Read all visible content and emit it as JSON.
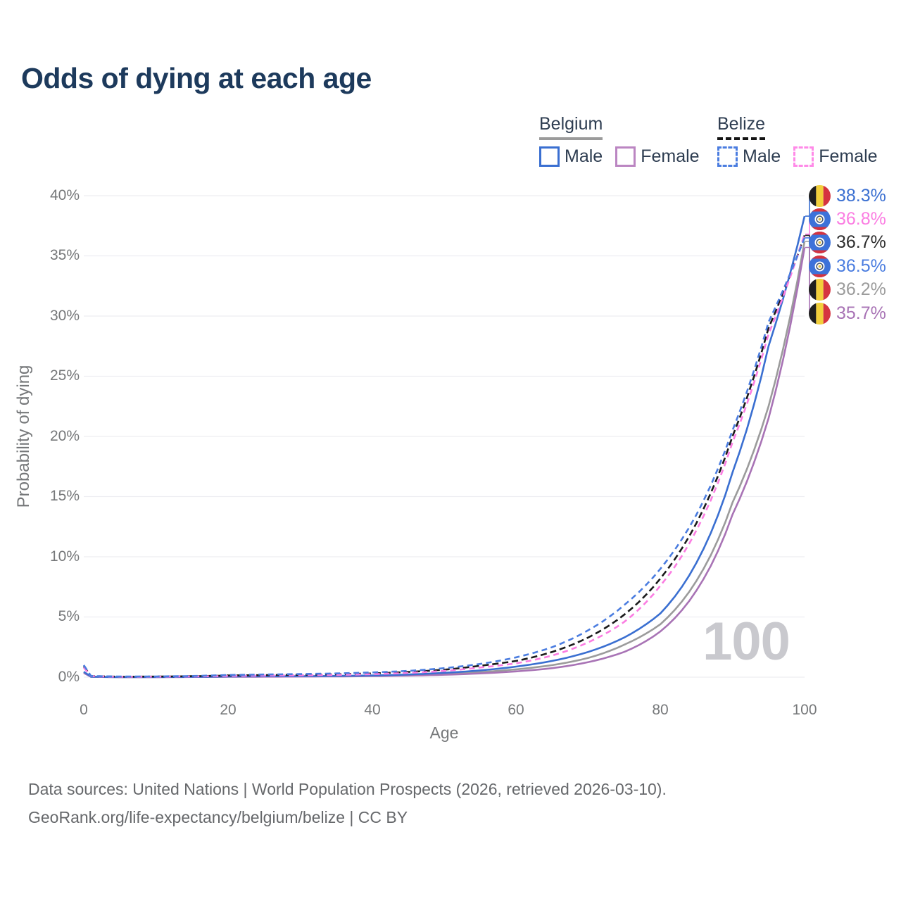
{
  "title": "Odds of dying at each age",
  "legend": {
    "groups": [
      {
        "country": "Belgium",
        "underline_style": "solid",
        "underline_color": "#9b9b9b",
        "items": [
          {
            "label": "Male",
            "color": "#3a6fd1",
            "dash": false
          },
          {
            "label": "Female",
            "color": "#bb86c2",
            "dash": false
          }
        ]
      },
      {
        "country": "Belize",
        "underline_style": "dashed",
        "underline_color": "#141414",
        "items": [
          {
            "label": "Male",
            "color": "#4b7de0",
            "dash": true
          },
          {
            "label": "Female",
            "color": "#ff8ae8",
            "dash": true
          }
        ]
      }
    ]
  },
  "chart_data": {
    "type": "line",
    "title": "Odds of dying at each age",
    "xlabel": "Age",
    "ylabel": "Probability of dying",
    "xlim": [
      0,
      100
    ],
    "ylim": [
      0,
      40
    ],
    "grid": "horizontal",
    "yticks": [
      "40%",
      "35%",
      "30%",
      "25%",
      "20%",
      "15%",
      "10%",
      "5%",
      "0%"
    ],
    "ytick_values": [
      40,
      35,
      30,
      25,
      20,
      15,
      10,
      5,
      0
    ],
    "xticks": [
      "0",
      "20",
      "40",
      "60",
      "80",
      "100"
    ],
    "xtick_values": [
      0,
      20,
      40,
      60,
      80,
      100
    ],
    "hover_age": "100",
    "x": [
      0,
      1,
      5,
      10,
      15,
      20,
      25,
      30,
      35,
      40,
      45,
      50,
      55,
      60,
      65,
      70,
      75,
      80,
      85,
      90,
      95,
      100
    ],
    "series": [
      {
        "name": "Belgium",
        "country": "Belgium",
        "sex": "Both",
        "color": "#9b9b9b",
        "dash": "",
        "values": [
          0.4,
          0.035,
          0.008,
          0.009,
          0.02,
          0.045,
          0.055,
          0.065,
          0.08,
          0.11,
          0.17,
          0.27,
          0.42,
          0.65,
          1.0,
          1.6,
          2.7,
          4.4,
          8.0,
          14.5,
          22.5,
          36.2
        ]
      },
      {
        "name": "Belgium Female",
        "country": "Belgium",
        "sex": "Female",
        "color": "#a873b5",
        "dash": "",
        "values": [
          0.35,
          0.03,
          0.007,
          0.008,
          0.015,
          0.03,
          0.04,
          0.05,
          0.06,
          0.085,
          0.13,
          0.2,
          0.31,
          0.48,
          0.75,
          1.25,
          2.1,
          3.8,
          7.2,
          13.5,
          21.5,
          35.7
        ]
      },
      {
        "name": "Belgium Male",
        "country": "Belgium",
        "sex": "Male",
        "color": "#3a6fd1",
        "dash": "",
        "values": [
          0.45,
          0.04,
          0.01,
          0.011,
          0.028,
          0.065,
          0.075,
          0.085,
          0.105,
          0.14,
          0.22,
          0.36,
          0.56,
          0.88,
          1.35,
          2.1,
          3.3,
          5.3,
          9.5,
          17.0,
          27.5,
          38.3
        ]
      },
      {
        "name": "Belize",
        "country": "Belize",
        "sex": "Both",
        "color": "#1a1a1a",
        "dash": "9 5",
        "values": [
          0.9,
          0.09,
          0.04,
          0.05,
          0.08,
          0.14,
          0.17,
          0.2,
          0.24,
          0.31,
          0.43,
          0.62,
          0.95,
          1.35,
          2.1,
          3.3,
          5.2,
          8.2,
          12.8,
          20.0,
          29.0,
          36.7
        ]
      },
      {
        "name": "Belize Female",
        "country": "Belize",
        "sex": "Female",
        "color": "#fb7de2",
        "dash": "8 5.5",
        "values": [
          0.8,
          0.08,
          0.035,
          0.04,
          0.06,
          0.1,
          0.13,
          0.16,
          0.19,
          0.25,
          0.35,
          0.52,
          0.8,
          1.15,
          1.8,
          2.9,
          4.6,
          7.6,
          12.2,
          19.5,
          28.5,
          36.8
        ]
      },
      {
        "name": "Belize Male",
        "country": "Belize",
        "sex": "Male",
        "color": "#4b7de0",
        "dash": "8 5.5",
        "values": [
          1.0,
          0.1,
          0.05,
          0.06,
          0.1,
          0.18,
          0.22,
          0.26,
          0.31,
          0.39,
          0.52,
          0.75,
          1.1,
          1.65,
          2.5,
          3.9,
          6.0,
          9.0,
          13.5,
          20.5,
          29.5,
          36.5
        ]
      }
    ],
    "end_labels": [
      {
        "flag": "belgium",
        "series": "Belgium Male",
        "value": "38.3%",
        "color": "#3a6fd1"
      },
      {
        "flag": "belize",
        "series": "Belize Female",
        "value": "36.8%",
        "color": "#fb7de2"
      },
      {
        "flag": "belize",
        "series": "Belize",
        "value": "36.7%",
        "color": "#2e2e2e"
      },
      {
        "flag": "belize",
        "series": "Belize Male",
        "value": "36.5%",
        "color": "#4b7de0"
      },
      {
        "flag": "belgium",
        "series": "Belgium",
        "value": "36.2%",
        "color": "#9b9b9b"
      },
      {
        "flag": "belgium",
        "series": "Belgium Female",
        "value": "35.7%",
        "color": "#a873b5"
      }
    ]
  },
  "icons": {
    "flag_belgium": {
      "black": "#1f1f1f",
      "yellow": "#f2cf3b",
      "red": "#d53440"
    },
    "flag_belize": {
      "blue": "#3d72d9",
      "red": "#d5333f",
      "ring": "#4a5a70",
      "center": "#e3bf3f"
    }
  },
  "footer": {
    "line1": "Data sources: United Nations | World Population Prospects (2026, retrieved 2026-03-10).",
    "line2": "GeoRank.org/life-expectancy/belgium/belize | CC BY"
  }
}
